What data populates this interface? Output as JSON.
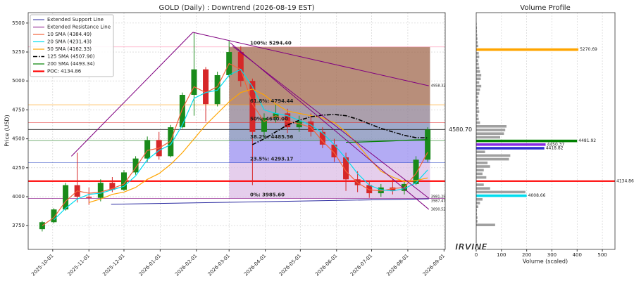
{
  "chart_data": [
    {
      "type": "candlestick",
      "title": "GOLD (Daily) : Downtrend (2026-08-19 EST)",
      "y_label": "Price (USD)",
      "x": [
        "2025-09-22",
        "2025-10-02",
        "2025-10-12",
        "2025-10-22",
        "2025-11-01",
        "2025-11-11",
        "2025-11-21",
        "2025-12-01",
        "2025-12-11",
        "2025-12-21",
        "2025-12-31",
        "2026-01-10",
        "2026-01-20",
        "2026-01-30",
        "2026-02-09",
        "2026-02-19",
        "2026-03-01",
        "2026-03-11",
        "2026-03-21",
        "2026-03-31",
        "2026-04-10",
        "2026-04-20",
        "2026-04-30",
        "2026-05-10",
        "2026-05-20",
        "2026-05-30",
        "2026-06-09",
        "2026-06-19",
        "2026-06-29",
        "2026-07-09",
        "2026-07-19",
        "2026-07-29",
        "2026-08-08",
        "2026-08-18"
      ],
      "open": [
        3720,
        3780,
        3890,
        4100,
        4000,
        3990,
        4120,
        4060,
        4210,
        4330,
        4490,
        4350,
        4600,
        4880,
        5100,
        4800,
        5050,
        5250,
        5000,
        4560,
        4680,
        4720,
        4600,
        4650,
        4560,
        4450,
        4340,
        4150,
        4100,
        4030,
        4080,
        4050,
        4110,
        4320
      ],
      "high": [
        3790,
        3900,
        4120,
        4380,
        4080,
        4150,
        4170,
        4230,
        4350,
        4520,
        4560,
        4620,
        4900,
        5420,
        5120,
        5080,
        5350,
        5300,
        5020,
        4720,
        4800,
        4760,
        4700,
        4720,
        4600,
        4500,
        4380,
        4220,
        4140,
        4110,
        4150,
        4130,
        4350,
        4600
      ],
      "low": [
        3700,
        3770,
        3880,
        3950,
        3930,
        3960,
        4040,
        4050,
        4190,
        4300,
        4320,
        4340,
        4590,
        4700,
        4650,
        4780,
        5030,
        4950,
        4100,
        4500,
        4640,
        4550,
        4560,
        4520,
        4420,
        4300,
        4050,
        4040,
        3990,
        4000,
        4020,
        4020,
        4100,
        4300
      ],
      "close": [
        3780,
        3890,
        4100,
        4000,
        3990,
        4120,
        4060,
        4210,
        4330,
        4490,
        4350,
        4600,
        4880,
        5100,
        4800,
        5050,
        5250,
        5000,
        4560,
        4680,
        4720,
        4600,
        4650,
        4560,
        4450,
        4340,
        4150,
        4100,
        4030,
        4080,
        4050,
        4110,
        4320,
        4580.7
      ],
      "up_color": "#1a8a1a",
      "down_color": "#d62728",
      "xlim": [
        "2025-09-10",
        "2026-09-02"
      ],
      "xticks": [
        "2025-10-01",
        "2025-11-01",
        "2025-12-01",
        "2026-01-01",
        "2026-02-01",
        "2026-03-01",
        "2026-04-01",
        "2026-05-01",
        "2026-06-01",
        "2026-07-01",
        "2026-08-01",
        "2026-09-01"
      ],
      "ylim": [
        3545,
        5590
      ],
      "yticks": [
        3750,
        4000,
        4250,
        4500,
        4750,
        5000,
        5250,
        5500
      ],
      "grid": true,
      "legend": "upper left",
      "trend_lines": [
        {
          "name": "Extended Support Line",
          "color": "#2a2aa0",
          "lines": [
            {
              "x": [
                "2025-11-20",
                "2026-08-19"
              ],
              "y": [
                3935,
                3981.25
              ]
            }
          ]
        },
        {
          "name": "Extended Resistance Line",
          "color": "#800080",
          "lines": [
            {
              "x": [
                "2025-10-17",
                "2026-01-29"
              ],
              "y": [
                4350,
                5420
              ]
            },
            {
              "x": [
                "2026-01-29",
                "2026-08-19"
              ],
              "y": [
                5420,
                4958.32
              ]
            },
            {
              "x": [
                "2026-03-02",
                "2026-08-19"
              ],
              "y": [
                5330,
                3890.52
              ]
            },
            {
              "x": [
                "2026-03-04",
                "2026-08-19"
              ],
              "y": [
                5300,
                3987.47
              ]
            }
          ]
        }
      ],
      "series": [
        {
          "name": "10 SMA (4384.49)",
          "color": "#f4623a",
          "dash": "-",
          "values": [
            3750,
            3820,
            3960,
            4050,
            4030,
            4040,
            4070,
            4110,
            4250,
            4400,
            4420,
            4480,
            4760,
            4950,
            4900,
            4950,
            5150,
            5100,
            4800,
            4650,
            4700,
            4650,
            4630,
            4600,
            4480,
            4380,
            4220,
            4120,
            4060,
            4050,
            4070,
            4080,
            4200,
            4384.49
          ]
        },
        {
          "name": "20 SMA (4231.43)",
          "color": "#00dcef",
          "dash": "-",
          "values": [
            null,
            3800,
            3900,
            3980,
            4020,
            4030,
            4060,
            4090,
            4180,
            4320,
            4400,
            4450,
            4620,
            4850,
            4900,
            4920,
            5050,
            5100,
            4950,
            4750,
            4720,
            4700,
            4660,
            4620,
            4550,
            4450,
            4330,
            4200,
            4100,
            4060,
            4050,
            4070,
            4120,
            4231.43
          ]
        },
        {
          "name": "50 SMA (4162.33)",
          "color": "#ffa500",
          "dash": "-",
          "values": [
            null,
            null,
            null,
            null,
            3950,
            3980,
            4020,
            4040,
            4080,
            4150,
            4200,
            4280,
            4380,
            4500,
            4620,
            4720,
            4820,
            4900,
            4930,
            4880,
            4800,
            4740,
            4720,
            4700,
            4680,
            4640,
            4560,
            4450,
            4330,
            4220,
            4170,
            4130,
            4140,
            4162.33
          ]
        },
        {
          "name": "125 SMA (4507.90)",
          "color": "#000000",
          "dash": "-.",
          "values": [
            null,
            null,
            null,
            null,
            null,
            null,
            null,
            null,
            null,
            null,
            null,
            null,
            null,
            null,
            null,
            null,
            null,
            null,
            4450,
            4500,
            4560,
            4620,
            4660,
            4690,
            4705,
            4710,
            4700,
            4670,
            4630,
            4590,
            4560,
            4530,
            4510,
            4507.9
          ]
        },
        {
          "name": "200 SMA (4493.34)",
          "color": "#008000",
          "dash": "-",
          "values": [
            null,
            null,
            null,
            null,
            null,
            null,
            null,
            null,
            null,
            null,
            null,
            null,
            null,
            null,
            null,
            null,
            null,
            null,
            null,
            null,
            null,
            null,
            null,
            null,
            null,
            null,
            4470,
            4472,
            4475,
            4478,
            4482,
            4487,
            4491,
            4493.34
          ]
        }
      ],
      "poc": {
        "label": "POC: 4134.86",
        "value": 4134.86,
        "color": "#ff0000"
      },
      "last_price": {
        "value": 4580.7,
        "label": "4580.70"
      },
      "fib": {
        "x": [
          "2026-03-01",
          "2026-08-20"
        ],
        "levels": [
          {
            "label": "100%: 5294.40",
            "value": 5294.4,
            "color": "#ff8fb0"
          },
          {
            "label": "61.8%: 4794.44",
            "value": 4794.44,
            "color": "#ff9900"
          },
          {
            "label": "50%: 4640.00",
            "value": 4640,
            "color": "#e02020"
          },
          {
            "label": "38.2%: 4485.56",
            "value": 4485.56,
            "color": "#1a7a1a"
          },
          {
            "label": "23.5%: 4293.17",
            "value": 4293.17,
            "color": "#1f3fbf"
          },
          {
            "label": "0%: 3985.60",
            "value": 3985.6,
            "color": "#800080"
          }
        ],
        "band_colors": [
          "#a0684e",
          "#8f7f90",
          "#7f8cb8",
          "#9a8ff0",
          "#dcbde6"
        ]
      }
    },
    {
      "type": "barh",
      "title": "Volume Profile",
      "x_label": "Volume (scaled)",
      "xlim": [
        0,
        550
      ],
      "xticks": [
        0,
        100,
        200,
        300,
        400,
        500
      ],
      "ylim": [
        3545,
        5590
      ],
      "grid": true,
      "bars": {
        "color": "#a0a0a0",
        "prices": [
          3756.26,
          3787.81,
          3819.36,
          3850.91,
          3882.46,
          3914.01,
          3945.56,
          3977.11,
          4040.21,
          4071.76,
          4103.31,
          4166.41,
          4197.96,
          4229.51,
          4261.06,
          4292.61,
          4324.16,
          4355.71,
          4387.26,
          4513.47,
          4545.02,
          4576.57,
          4608.12,
          4639.67,
          4671.22,
          4702.77,
          4734.32,
          4765.87,
          4797.42,
          4828.97,
          4860.52,
          4892.07,
          4923.62,
          4955.17,
          4986.72,
          5018.27,
          5049.82,
          5081.37,
          5112.92,
          5144.47,
          5176.02,
          5207.57,
          5239.12,
          5302.24,
          5333.79,
          5365.34,
          5396.89,
          5428.44,
          5459.99,
          5491.54
        ],
        "values": [
          75,
          5,
          5,
          3,
          3,
          8,
          15,
          25,
          195,
          55,
          30,
          40,
          25,
          30,
          55,
          45,
          130,
          135,
          35,
          95,
          110,
          115,
          120,
          15,
          10,
          8,
          12,
          10,
          8,
          10,
          8,
          12,
          15,
          20,
          12,
          18,
          20,
          15,
          12,
          10,
          8,
          12,
          10,
          8,
          6,
          5,
          4,
          3,
          3,
          2
        ]
      },
      "highlights": [
        {
          "price": 5270.69,
          "value": 405,
          "color": "#ffa500"
        },
        {
          "price": 4481.92,
          "value": 400,
          "color": "#008000"
        },
        {
          "price": 4450.37,
          "value": 275,
          "color": "#8a2be2"
        },
        {
          "price": 4418.82,
          "value": 270,
          "color": "#3030d0"
        },
        {
          "price": 4008.66,
          "value": 200,
          "color": "#00dcef"
        }
      ]
    }
  ],
  "watermark": "IRVINE"
}
